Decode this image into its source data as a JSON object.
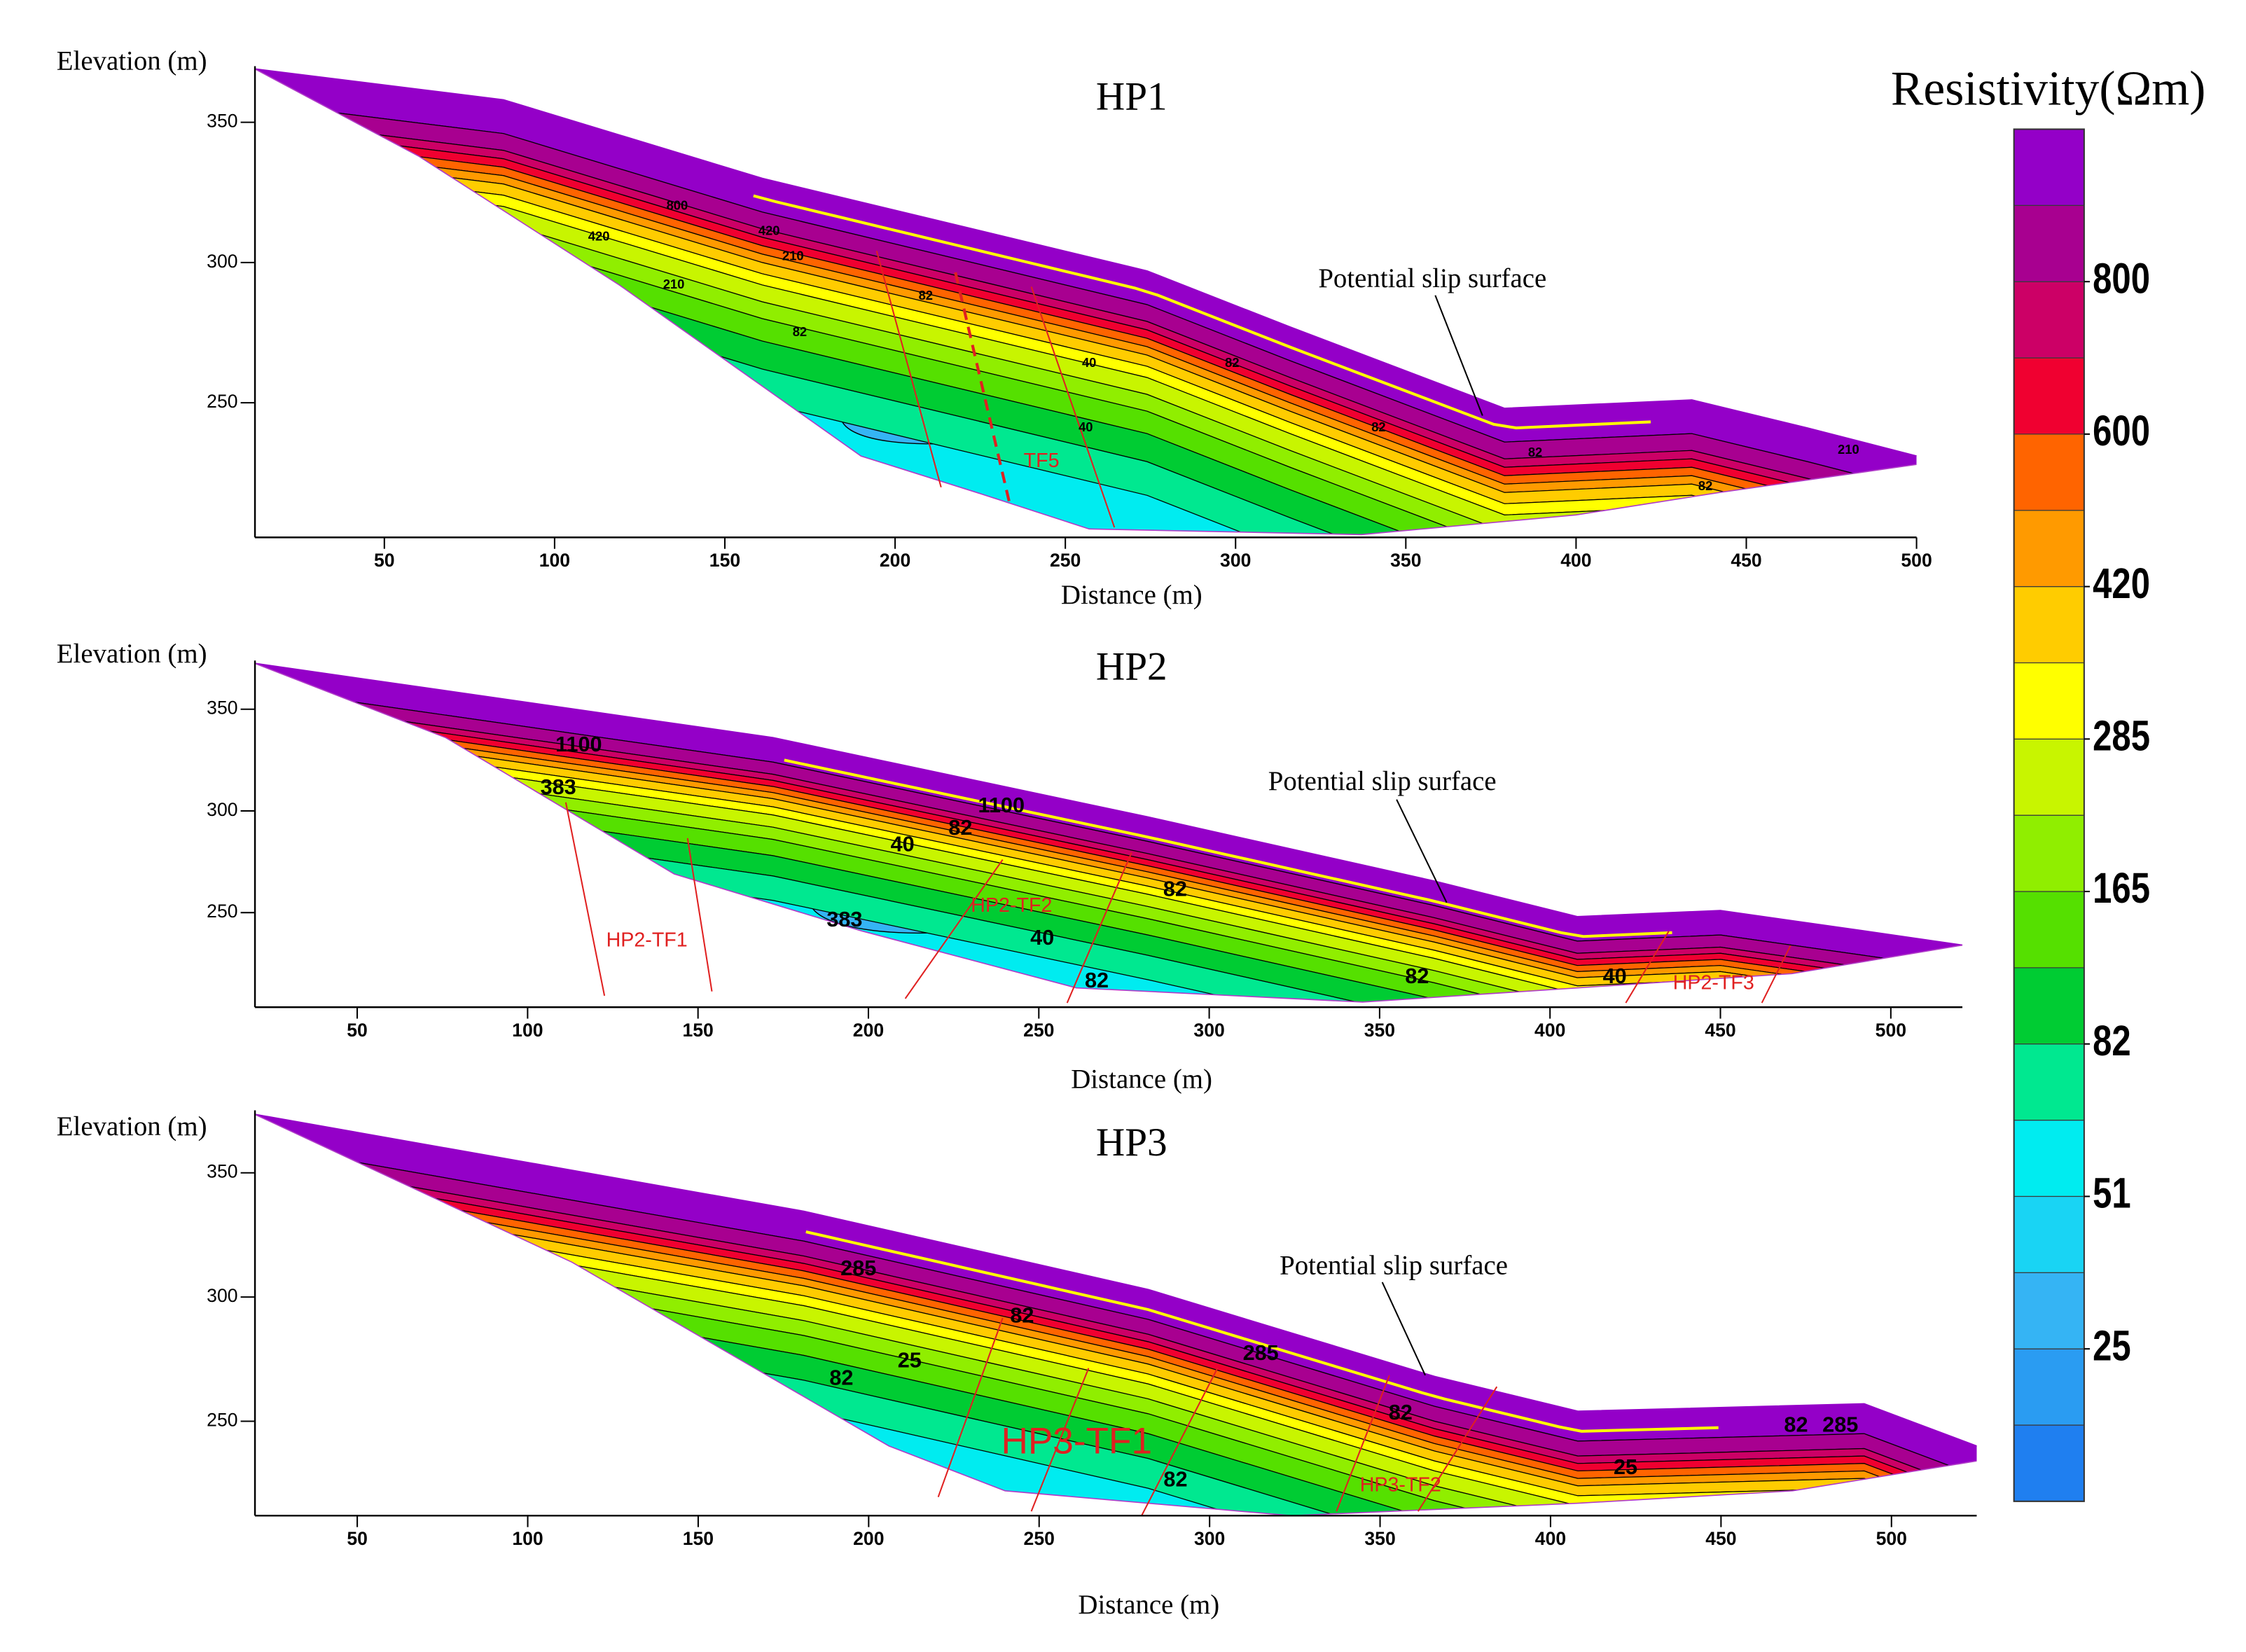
{
  "chart_data": [
    {
      "type": "section",
      "title": "HP1",
      "xlabel": "Distance (m)",
      "ylabel": "Elevation (m)",
      "xlim": [
        12,
        500
      ],
      "xticks": [
        50,
        100,
        150,
        200,
        250,
        300,
        350,
        400,
        450,
        500
      ],
      "ylim": [
        202,
        369
      ],
      "yticks": [
        250,
        300,
        350
      ],
      "surface": {
        "x": [
          12,
          85,
          161,
          274,
          316,
          379,
          434,
          468,
          500
        ],
        "y": [
          369,
          358,
          330,
          297,
          277,
          248,
          251,
          241,
          231
        ]
      },
      "base": {
        "x": [
          12,
          60,
          119,
          190,
          224,
          257,
          337,
          400,
          442,
          500
        ],
        "y": [
          369,
          338,
          292,
          231,
          218,
          205,
          203,
          210,
          218,
          228
        ]
      },
      "annotation": "Potential slip surface",
      "contour_labels": [
        {
          "value": 800,
          "x": 136,
          "y": 320
        },
        {
          "value": 420,
          "x": 113,
          "y": 309
        },
        {
          "value": 420,
          "x": 163,
          "y": 311
        },
        {
          "value": 210,
          "x": 170,
          "y": 302
        },
        {
          "value": 210,
          "x": 135,
          "y": 292
        },
        {
          "value": 82,
          "x": 172,
          "y": 275
        },
        {
          "value": 82,
          "x": 209,
          "y": 288
        },
        {
          "value": 40,
          "x": 257,
          "y": 264
        },
        {
          "value": 40,
          "x": 256,
          "y": 241
        },
        {
          "value": 82,
          "x": 299,
          "y": 264
        },
        {
          "value": 82,
          "x": 342,
          "y": 241
        },
        {
          "value": 82,
          "x": 388,
          "y": 232
        },
        {
          "value": 210,
          "x": 480,
          "y": 233
        },
        {
          "value": 82,
          "x": 438,
          "y": 220
        }
      ],
      "faults": [
        {
          "label": "TF5",
          "x": 243,
          "y": 229
        }
      ]
    },
    {
      "type": "section",
      "title": "HP2",
      "xlabel": "Distance (m)",
      "ylabel": "Elevation (m)",
      "xlim": [
        20,
        521
      ],
      "xticks": [
        50,
        100,
        150,
        200,
        250,
        300,
        350,
        400,
        450,
        500
      ],
      "ylim": [
        203.5,
        372.5
      ],
      "yticks": [
        250,
        300,
        350
      ],
      "surface": {
        "x": [
          20,
          172,
          282,
          366,
          408,
          450,
          492,
          521
        ],
        "y": [
          372.5,
          336,
          297,
          265.5,
          248,
          251,
          241,
          234
        ]
      },
      "base": {
        "x": [
          20,
          76,
          143,
          198,
          261,
          345,
          408,
          471,
          521
        ],
        "y": [
          372.5,
          336,
          269,
          241,
          213,
          206,
          213,
          220,
          234
        ]
      },
      "annotation": "Potential slip surface",
      "contour_labels": [
        {
          "value": 1100,
          "x": 115,
          "y": 332
        },
        {
          "value": 383,
          "x": 109,
          "y": 311
        },
        {
          "value": 82,
          "x": 227,
          "y": 291
        },
        {
          "value": 40,
          "x": 210,
          "y": 283
        },
        {
          "value": 82,
          "x": 290,
          "y": 261
        },
        {
          "value": 40,
          "x": 251,
          "y": 237
        },
        {
          "value": 383,
          "x": 193,
          "y": 246
        },
        {
          "value": 82,
          "x": 267,
          "y": 216
        },
        {
          "value": 82,
          "x": 361,
          "y": 218
        },
        {
          "value": 40,
          "x": 419,
          "y": 218
        },
        {
          "value": 1100,
          "x": 239,
          "y": 302
        }
      ],
      "faults": [
        {
          "label": "HP2-TF1",
          "x": 135,
          "y": 236
        },
        {
          "label": "HP2-TF2",
          "x": 242,
          "y": 253
        },
        {
          "label": "HP2-TF3",
          "x": 448,
          "y": 215
        }
      ]
    },
    {
      "type": "section",
      "title": "HP3",
      "xlabel": "Distance (m)",
      "ylabel": "Elevation (m)",
      "xlim": [
        20,
        525
      ],
      "xticks": [
        50,
        100,
        150,
        200,
        250,
        300,
        350,
        400,
        450,
        500
      ],
      "ylim": [
        212,
        374
      ],
      "yticks": [
        250,
        300,
        350
      ],
      "surface": {
        "x": [
          20,
          181,
          282,
          366,
          408,
          492,
          525
        ],
        "y": [
          373.5,
          334.5,
          303,
          268,
          254,
          257,
          240
        ]
      },
      "base": {
        "x": [
          20,
          113,
          206,
          240,
          324,
          408,
          471,
          525
        ],
        "y": [
          373.5,
          314,
          240,
          222,
          212,
          217,
          222,
          234
        ]
      },
      "annotation": "Potential slip surface",
      "contour_labels": [
        {
          "value": 285,
          "x": 197,
          "y": 311
        },
        {
          "value": 25,
          "x": 212,
          "y": 274
        },
        {
          "value": 82,
          "x": 192,
          "y": 267
        },
        {
          "value": 82,
          "x": 245,
          "y": 292
        },
        {
          "value": 285,
          "x": 315,
          "y": 277
        },
        {
          "value": 82,
          "x": 356,
          "y": 253
        },
        {
          "value": 82,
          "x": 290,
          "y": 226
        },
        {
          "value": 25,
          "x": 422,
          "y": 231
        },
        {
          "value": 82,
          "x": 472,
          "y": 248
        },
        {
          "value": 285,
          "x": 485,
          "y": 248
        }
      ],
      "faults": [
        {
          "label": "HP3-TF1",
          "x": 261,
          "y": 241
        },
        {
          "label": "HP3-TF2",
          "x": 356,
          "y": 224
        }
      ]
    },
    {
      "type": "colorbar",
      "title": "Resistivity(Ωm)",
      "colors": [
        "#1f7ff0",
        "#2a9cf2",
        "#35b4f4",
        "#19d4f4",
        "#00ecf0",
        "#00e890",
        "#00cc33",
        "#55e000",
        "#90ee00",
        "#c8f500",
        "#ffff00",
        "#ffcc00",
        "#ff9a00",
        "#ff6400",
        "#f00030",
        "#cc0066",
        "#a80090",
        "#9400c8"
      ],
      "ticks": [
        25,
        51,
        82,
        165,
        285,
        420,
        600,
        800
      ]
    }
  ]
}
